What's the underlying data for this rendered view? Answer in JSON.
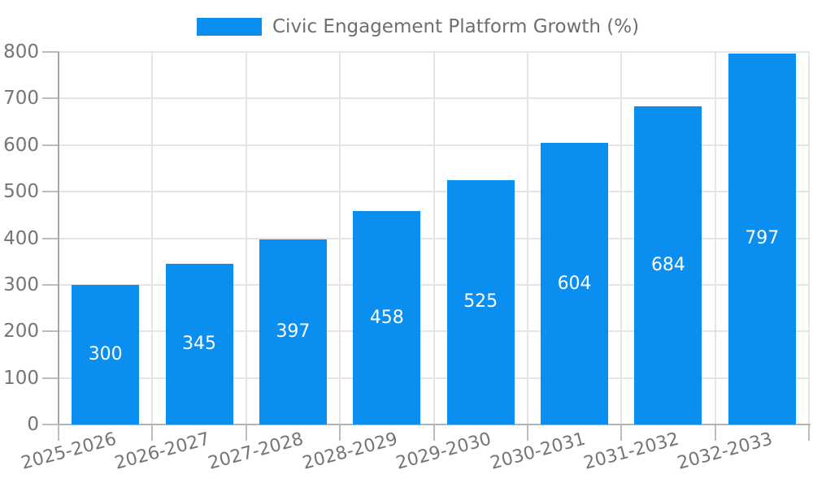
{
  "chart_data": {
    "type": "bar",
    "title": "Civic Engagement Platform Growth (%)",
    "categories": [
      "2025-2026",
      "2026-2027",
      "2027-2028",
      "2028-2029",
      "2029-2030",
      "2030-2031",
      "2031-2032",
      "2032-2033"
    ],
    "values": [
      300,
      345,
      397,
      458,
      525,
      604,
      684,
      797
    ],
    "value_labels": [
      "300",
      "345",
      "397",
      "458",
      "525",
      "604",
      "684",
      "797"
    ],
    "xlabel": "",
    "ylabel": "",
    "ylim": [
      0,
      800
    ],
    "ytick_step": 100,
    "ytick_labels": [
      "0",
      "100",
      "200",
      "300",
      "400",
      "500",
      "600",
      "700",
      "800"
    ],
    "grid": true,
    "legend_position": "top-center",
    "colors": {
      "bar": "#0a8ff0",
      "bar_label": "#ffffff",
      "axis_text": "#757575",
      "title_text": "#6e6e6e",
      "gridline": "#e5e5e5",
      "tick": "#bdbdbd",
      "y_axis_line": "#a6a6a6",
      "x_axis_line": "#b3b3b3",
      "background": "#ffffff"
    }
  }
}
